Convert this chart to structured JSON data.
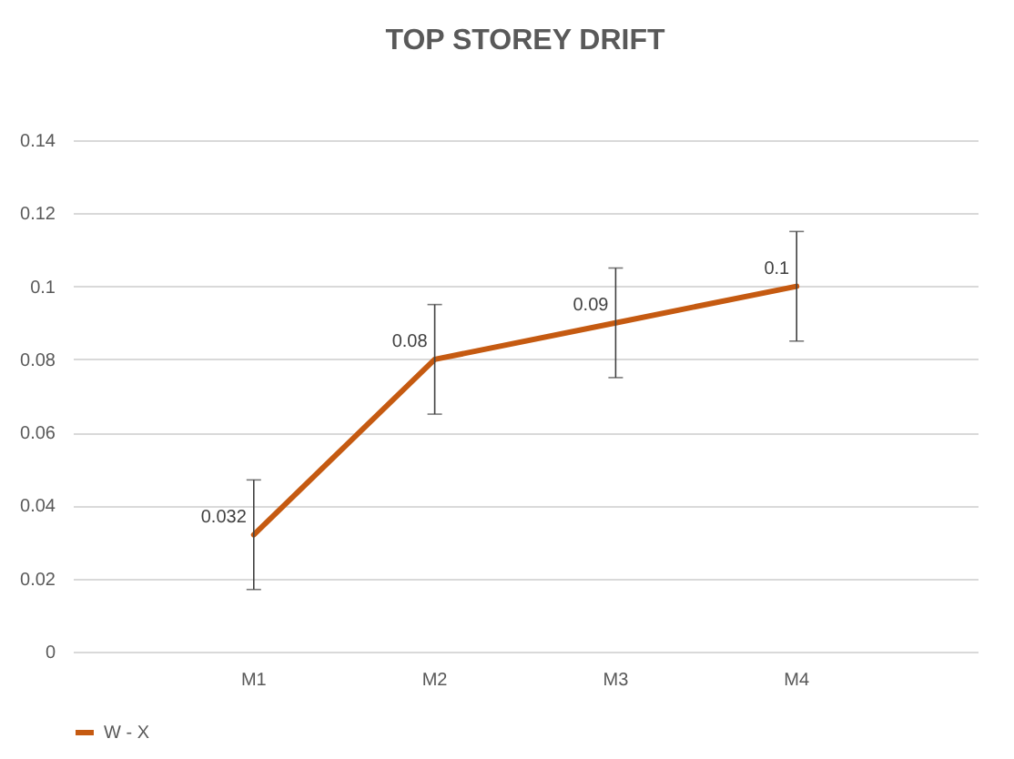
{
  "chart_data": {
    "type": "line",
    "title": "TOP STOREY DRIFT",
    "categories": [
      "M1",
      "M2",
      "M3",
      "M4"
    ],
    "series": [
      {
        "name": "W - X",
        "color": "#c55a11",
        "values": [
          0.032,
          0.08,
          0.09,
          0.1
        ],
        "errors": [
          0.015,
          0.015,
          0.015,
          0.015
        ]
      }
    ],
    "ylim": [
      0,
      0.14
    ],
    "yticks": [
      0,
      0.02,
      0.04,
      0.06,
      0.08,
      0.1,
      0.12,
      0.14
    ],
    "grid": "y",
    "legend": "bottom",
    "data_labels": true,
    "marker": "none",
    "line_style": "solid"
  }
}
